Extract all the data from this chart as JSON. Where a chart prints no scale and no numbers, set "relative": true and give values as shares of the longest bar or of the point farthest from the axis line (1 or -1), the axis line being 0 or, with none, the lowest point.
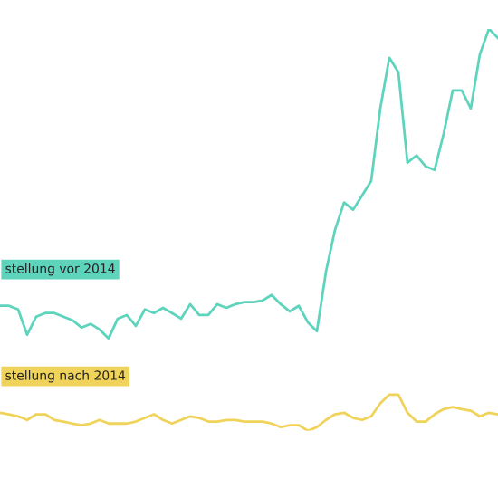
{
  "chart_data": {
    "type": "line",
    "relative": true,
    "legend": false,
    "grid": false,
    "marker": "none",
    "line_style": "solid",
    "categories": [
      null,
      null,
      null,
      null,
      null,
      null,
      null,
      null,
      null,
      null,
      null,
      null,
      null,
      null,
      null,
      null,
      null,
      null,
      null,
      null,
      null,
      null,
      null,
      null,
      null,
      null,
      null,
      null,
      null,
      null,
      null,
      null,
      null,
      null,
      null,
      null,
      null,
      null,
      null,
      null,
      null,
      null,
      null,
      null,
      null,
      null,
      null,
      null,
      null,
      null,
      null,
      null,
      null,
      null,
      null,
      null
    ],
    "series": [
      {
        "name": "stellung vor 2014",
        "color": "#5fd4bd",
        "values": [
          0.311,
          0.311,
          0.302,
          0.239,
          0.284,
          0.293,
          0.293,
          0.284,
          0.275,
          0.257,
          0.266,
          0.252,
          0.23,
          0.279,
          0.288,
          0.261,
          0.302,
          0.293,
          0.306,
          0.293,
          0.279,
          0.315,
          0.288,
          0.288,
          0.315,
          0.306,
          0.315,
          0.32,
          0.32,
          0.324,
          0.338,
          0.315,
          0.297,
          0.311,
          0.27,
          0.248,
          0.396,
          0.5,
          0.568,
          0.55,
          0.586,
          0.622,
          0.802,
          0.928,
          0.892,
          0.667,
          0.685,
          0.658,
          0.649,
          0.739,
          0.847,
          0.847,
          0.802,
          0.937,
          1.0,
          0.977
        ]
      },
      {
        "name": "stellung nach 2014",
        "color": "#f0d35a",
        "values": [
          0.045,
          0.041,
          0.036,
          0.027,
          0.041,
          0.041,
          0.027,
          0.023,
          0.018,
          0.014,
          0.018,
          0.027,
          0.018,
          0.018,
          0.018,
          0.023,
          0.032,
          0.041,
          0.027,
          0.018,
          0.027,
          0.036,
          0.032,
          0.023,
          0.023,
          0.027,
          0.027,
          0.023,
          0.023,
          0.023,
          0.018,
          0.009,
          0.014,
          0.014,
          0,
          0.009,
          0.027,
          0.041,
          0.045,
          0.032,
          0.027,
          0.036,
          0.068,
          0.09,
          0.09,
          0.045,
          0.023,
          0.023,
          0.041,
          0.054,
          0.059,
          0.054,
          0.05,
          0.036,
          0.045,
          0.041
        ]
      }
    ]
  }
}
